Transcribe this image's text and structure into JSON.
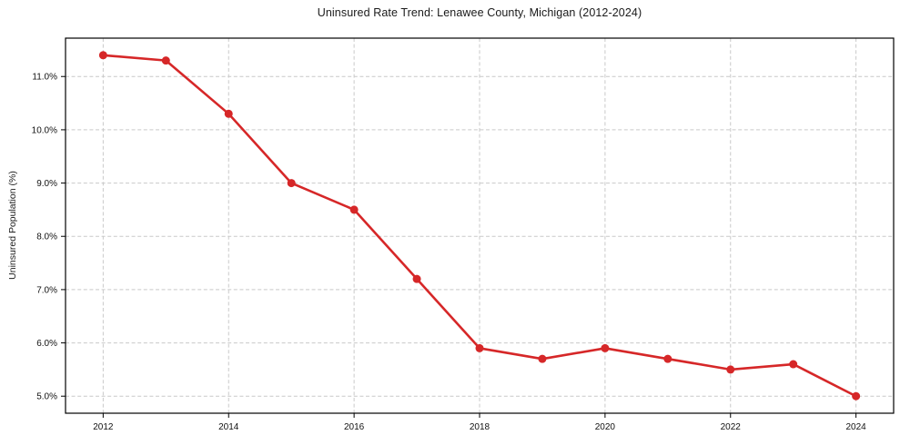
{
  "chart_data": {
    "type": "line",
    "title": "Uninsured Rate Trend: Lenawee County, Michigan (2012-2024)",
    "xlabel": "",
    "ylabel": "Uninsured Population (%)",
    "x": [
      2012,
      2013,
      2014,
      2015,
      2016,
      2017,
      2018,
      2019,
      2020,
      2021,
      2022,
      2023,
      2024
    ],
    "values": [
      11.4,
      11.3,
      10.3,
      9.0,
      8.5,
      7.2,
      5.9,
      5.7,
      5.9,
      5.7,
      5.5,
      5.6,
      5.0
    ],
    "xlim": [
      2011.4,
      2024.6
    ],
    "ylim": [
      4.68,
      11.72
    ],
    "xticks": [
      2012,
      2014,
      2016,
      2018,
      2020,
      2022,
      2024
    ],
    "xtick_labels": [
      "2012",
      "2014",
      "2016",
      "2018",
      "2020",
      "2022",
      "2024"
    ],
    "yticks": [
      5.0,
      6.0,
      7.0,
      8.0,
      9.0,
      10.0,
      11.0
    ],
    "ytick_labels": [
      "5.0%",
      "6.0%",
      "7.0%",
      "8.0%",
      "9.0%",
      "10.0%",
      "11.0%"
    ],
    "line_color": "#d62728",
    "grid_color": "#c9c9c9",
    "axis_color": "#000000",
    "grid": true,
    "legend": false
  }
}
